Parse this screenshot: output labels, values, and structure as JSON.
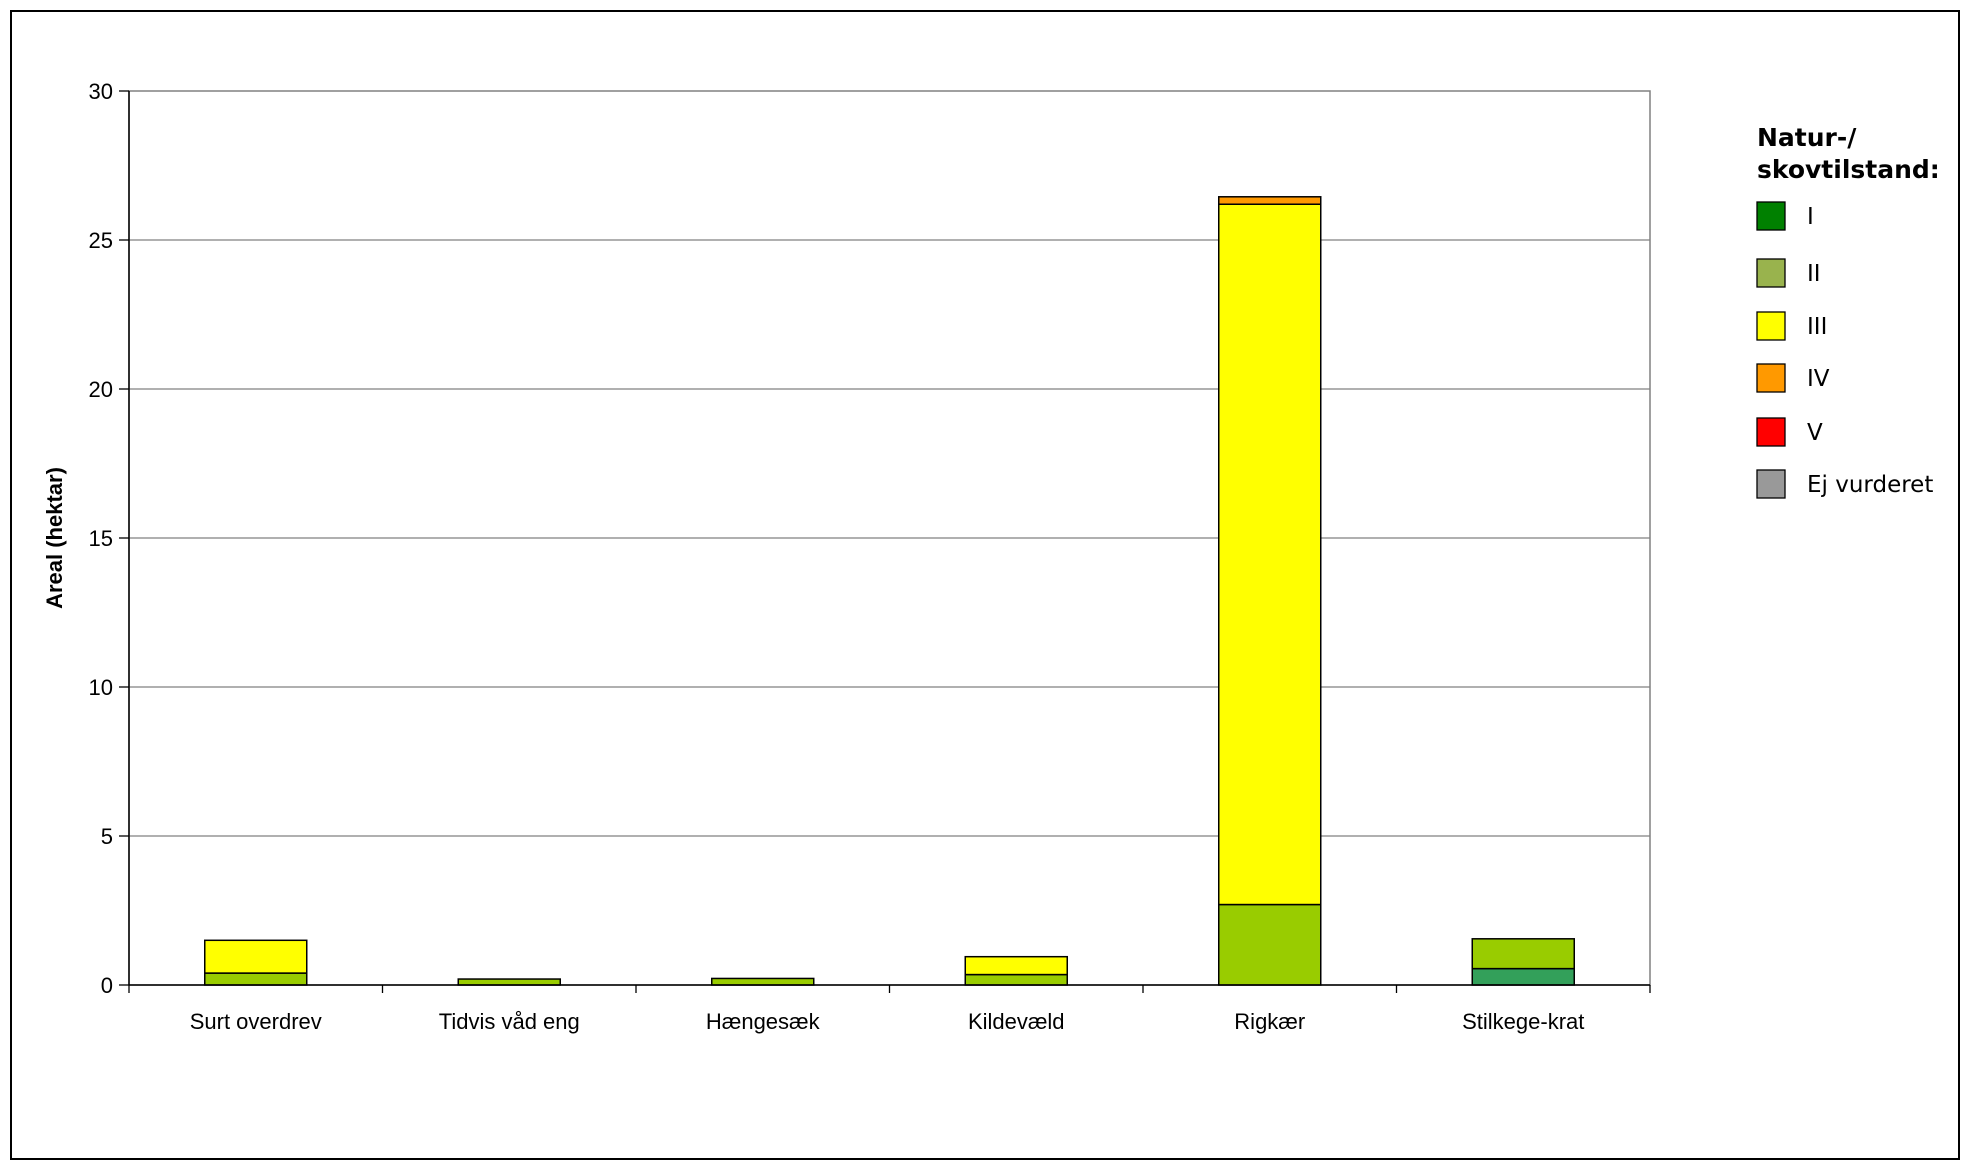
{
  "chart_data": {
    "type": "bar",
    "stacked": true,
    "categories": [
      "Surt overdrev",
      "Tidvis våd eng",
      "Hængesæk",
      "Kildevæld",
      "Rigkær",
      "Stilkege-krat"
    ],
    "ylabel": "Areal (hektar)",
    "xlabel": "",
    "ylim": [
      0,
      30
    ],
    "yticks": [
      0,
      5,
      10,
      15,
      20,
      25,
      30
    ],
    "grid": true,
    "legend_position": "right",
    "legend_title": "Natur-/ skovtilstand:",
    "legend_title_lines": [
      "Natur-/",
      "skovtilstand:"
    ],
    "series": [
      {
        "name": "I",
        "legend_color": "#008000",
        "color": "#33a05a",
        "values": [
          0,
          0,
          0,
          0,
          0,
          0.55
        ]
      },
      {
        "name": "II",
        "legend_color": "#99b34d",
        "color": "#99cc00",
        "values": [
          0.4,
          0.2,
          0.22,
          0.35,
          2.7,
          1.0
        ]
      },
      {
        "name": "III",
        "legend_color": "#ffff00",
        "color": "#ffff00",
        "values": [
          1.1,
          0,
          0,
          0.6,
          23.5,
          0
        ]
      },
      {
        "name": "IV",
        "legend_color": "#ff9900",
        "color": "#ff9900",
        "values": [
          0,
          0,
          0,
          0,
          0.25,
          0
        ]
      },
      {
        "name": "V",
        "legend_color": "#ff0000",
        "color": "#ff0000",
        "values": [
          0,
          0,
          0,
          0,
          0,
          0
        ]
      },
      {
        "name": "Ej vurderet",
        "legend_color": "#999999",
        "color": "#999999",
        "values": [
          0,
          0,
          0,
          0,
          0,
          0
        ]
      }
    ]
  }
}
